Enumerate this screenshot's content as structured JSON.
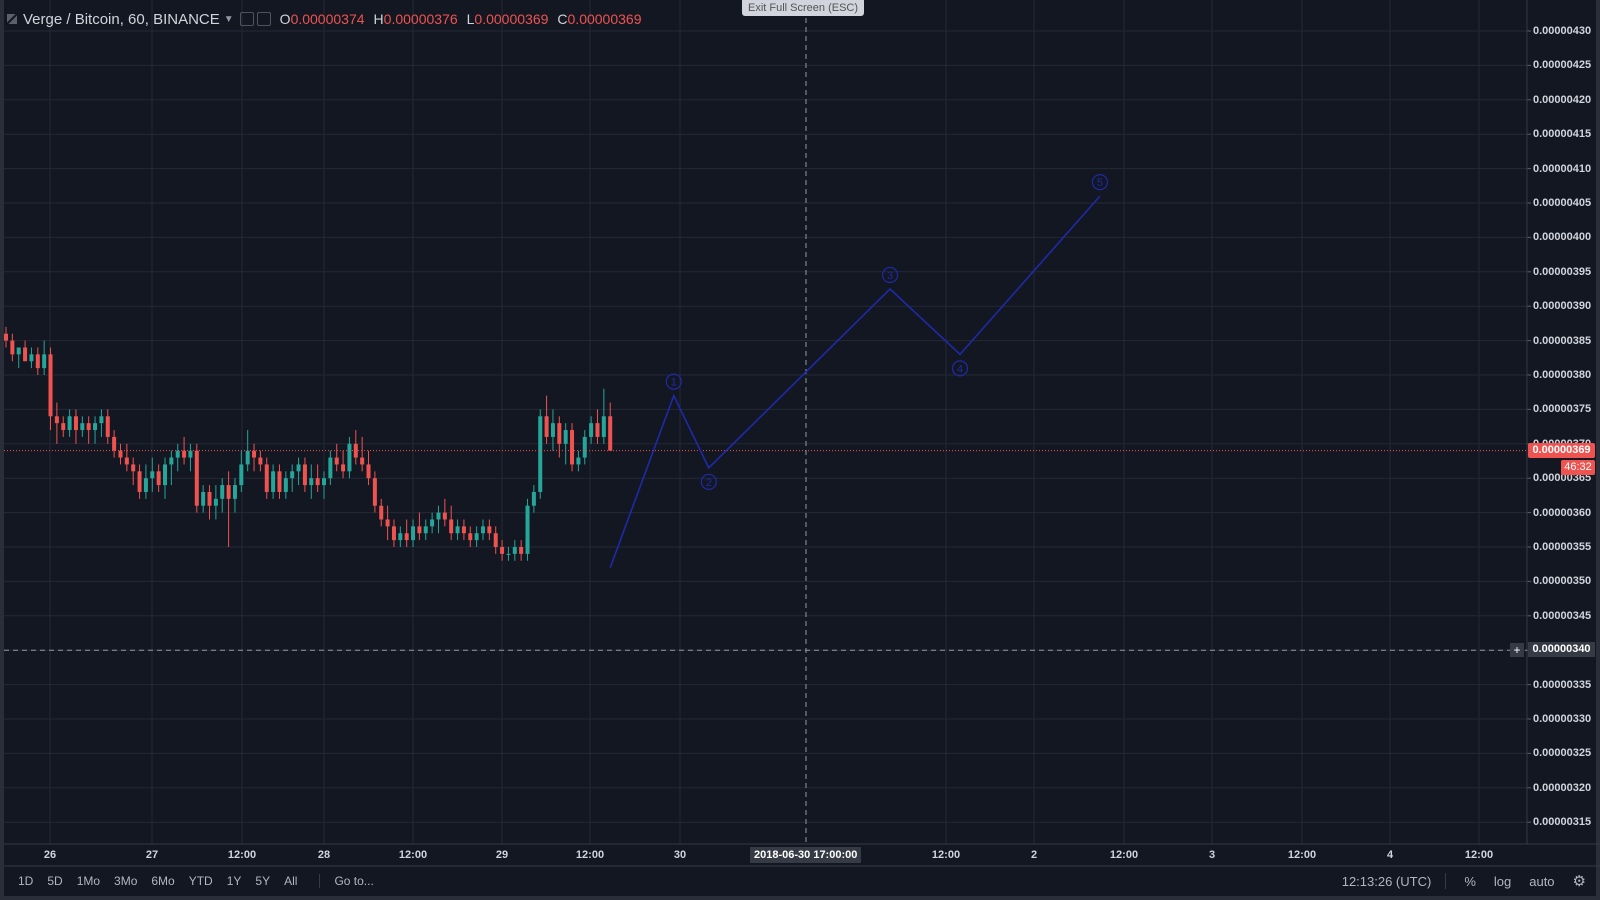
{
  "window": {
    "exit_fullscreen": "Exit Full Screen (ESC)"
  },
  "header": {
    "title": "Verge / Bitcoin, 60, BINANCE",
    "open_label": "O",
    "open": "0.00000374",
    "high_label": "H",
    "high": "0.00000376",
    "low_label": "L",
    "low": "0.00000369",
    "close_label": "C",
    "close": "0.00000369"
  },
  "price_axis": {
    "labels": [
      "0.00000430",
      "0.00000425",
      "0.00000420",
      "0.00000415",
      "0.00000410",
      "0.00000405",
      "0.00000400",
      "0.00000395",
      "0.00000390",
      "0.00000385",
      "0.00000380",
      "0.00000375",
      "0.00000370",
      "0.00000365",
      "0.00000360",
      "0.00000355",
      "0.00000350",
      "0.00000345",
      "0.00000340",
      "0.00000335",
      "0.00000330",
      "0.00000325",
      "0.00000320",
      "0.00000315"
    ],
    "current_price": "0.00000369",
    "countdown": "46:32",
    "crosshair_price": "0.00000340"
  },
  "time_axis": {
    "labels": [
      "26",
      "27",
      "12:00",
      "28",
      "12:00",
      "29",
      "12:00",
      "30",
      "12:00",
      "2",
      "12:00",
      "3",
      "12:00",
      "4",
      "12:00"
    ],
    "crosshair_time": "2018-06-30 17:00:00"
  },
  "bottom_bar": {
    "ranges": [
      "1D",
      "5D",
      "1Mo",
      "3Mo",
      "6Mo",
      "YTD",
      "1Y",
      "5Y",
      "All"
    ],
    "goto": "Go to...",
    "clock": "12:13:26 (UTC)",
    "percent": "%",
    "log": "log",
    "auto": "auto"
  },
  "elliott_wave": {
    "labels": [
      "1",
      "2",
      "3",
      "4",
      "5"
    ],
    "color": "#1e2aa8"
  },
  "colors": {
    "up": "#26a69a",
    "down": "#ef5350",
    "background": "#131722",
    "grid": "#2a2e39"
  },
  "chart_data": {
    "type": "candlestick",
    "title": "Verge / Bitcoin, 60, BINANCE",
    "ylim": [
      3.13e-06,
      4.33e-06
    ],
    "candles": [
      [
        3.86,
        3.87,
        3.84,
        3.85
      ],
      [
        3.85,
        3.86,
        3.82,
        3.83
      ],
      [
        3.83,
        3.84,
        3.81,
        3.84
      ],
      [
        3.84,
        3.85,
        3.82,
        3.82
      ],
      [
        3.82,
        3.84,
        3.81,
        3.83
      ],
      [
        3.83,
        3.84,
        3.8,
        3.81
      ],
      [
        3.81,
        3.85,
        3.8,
        3.83
      ],
      [
        3.83,
        3.84,
        3.72,
        3.74
      ],
      [
        3.74,
        3.76,
        3.7,
        3.73
      ],
      [
        3.73,
        3.74,
        3.71,
        3.72
      ],
      [
        3.72,
        3.75,
        3.71,
        3.74
      ],
      [
        3.74,
        3.75,
        3.7,
        3.72
      ],
      [
        3.72,
        3.74,
        3.71,
        3.73
      ],
      [
        3.73,
        3.74,
        3.7,
        3.72
      ],
      [
        3.72,
        3.74,
        3.7,
        3.73
      ],
      [
        3.73,
        3.75,
        3.71,
        3.74
      ],
      [
        3.74,
        3.75,
        3.7,
        3.71
      ],
      [
        3.71,
        3.72,
        3.68,
        3.69
      ],
      [
        3.69,
        3.7,
        3.67,
        3.68
      ],
      [
        3.68,
        3.7,
        3.66,
        3.67
      ],
      [
        3.67,
        3.68,
        3.64,
        3.66
      ],
      [
        3.66,
        3.67,
        3.62,
        3.63
      ],
      [
        3.63,
        3.67,
        3.62,
        3.65
      ],
      [
        3.65,
        3.68,
        3.63,
        3.66
      ],
      [
        3.66,
        3.67,
        3.63,
        3.64
      ],
      [
        3.64,
        3.68,
        3.62,
        3.67
      ],
      [
        3.67,
        3.69,
        3.64,
        3.68
      ],
      [
        3.68,
        3.7,
        3.66,
        3.69
      ],
      [
        3.69,
        3.71,
        3.67,
        3.68
      ],
      [
        3.68,
        3.7,
        3.66,
        3.69
      ],
      [
        3.69,
        3.7,
        3.6,
        3.61
      ],
      [
        3.61,
        3.64,
        3.6,
        3.63
      ],
      [
        3.63,
        3.64,
        3.59,
        3.61
      ],
      [
        3.61,
        3.64,
        3.59,
        3.62
      ],
      [
        3.62,
        3.65,
        3.6,
        3.64
      ],
      [
        3.64,
        3.66,
        3.55,
        3.62
      ],
      [
        3.62,
        3.65,
        3.6,
        3.64
      ],
      [
        3.64,
        3.69,
        3.63,
        3.67
      ],
      [
        3.67,
        3.72,
        3.66,
        3.69
      ],
      [
        3.69,
        3.7,
        3.66,
        3.68
      ],
      [
        3.68,
        3.69,
        3.66,
        3.67
      ],
      [
        3.67,
        3.68,
        3.62,
        3.63
      ],
      [
        3.63,
        3.67,
        3.62,
        3.66
      ],
      [
        3.66,
        3.67,
        3.62,
        3.63
      ],
      [
        3.63,
        3.66,
        3.62,
        3.65
      ],
      [
        3.65,
        3.67,
        3.63,
        3.66
      ],
      [
        3.66,
        3.68,
        3.64,
        3.67
      ],
      [
        3.67,
        3.68,
        3.63,
        3.64
      ],
      [
        3.64,
        3.67,
        3.62,
        3.65
      ],
      [
        3.65,
        3.67,
        3.63,
        3.64
      ],
      [
        3.64,
        3.66,
        3.62,
        3.65
      ],
      [
        3.65,
        3.69,
        3.64,
        3.68
      ],
      [
        3.68,
        3.7,
        3.66,
        3.67
      ],
      [
        3.67,
        3.69,
        3.65,
        3.66
      ],
      [
        3.66,
        3.71,
        3.65,
        3.7
      ],
      [
        3.7,
        3.72,
        3.67,
        3.68
      ],
      [
        3.68,
        3.71,
        3.66,
        3.67
      ],
      [
        3.67,
        3.69,
        3.64,
        3.65
      ],
      [
        3.65,
        3.66,
        3.6,
        3.61
      ],
      [
        3.61,
        3.62,
        3.58,
        3.59
      ],
      [
        3.59,
        3.61,
        3.56,
        3.58
      ],
      [
        3.58,
        3.59,
        3.55,
        3.56
      ],
      [
        3.56,
        3.58,
        3.55,
        3.57
      ],
      [
        3.57,
        3.59,
        3.55,
        3.56
      ],
      [
        3.56,
        3.59,
        3.55,
        3.58
      ],
      [
        3.58,
        3.6,
        3.56,
        3.57
      ],
      [
        3.57,
        3.59,
        3.56,
        3.58
      ],
      [
        3.58,
        3.6,
        3.57,
        3.59
      ],
      [
        3.59,
        3.61,
        3.57,
        3.6
      ],
      [
        3.6,
        3.62,
        3.58,
        3.59
      ],
      [
        3.59,
        3.61,
        3.56,
        3.57
      ],
      [
        3.57,
        3.59,
        3.56,
        3.58
      ],
      [
        3.58,
        3.59,
        3.56,
        3.57
      ],
      [
        3.57,
        3.58,
        3.55,
        3.56
      ],
      [
        3.56,
        3.58,
        3.55,
        3.57
      ],
      [
        3.57,
        3.59,
        3.56,
        3.58
      ],
      [
        3.58,
        3.59,
        3.56,
        3.57
      ],
      [
        3.57,
        3.58,
        3.54,
        3.55
      ],
      [
        3.55,
        3.56,
        3.53,
        3.54
      ],
      [
        3.54,
        3.55,
        3.53,
        3.54
      ],
      [
        3.54,
        3.56,
        3.53,
        3.55
      ],
      [
        3.55,
        3.56,
        3.53,
        3.54
      ],
      [
        3.54,
        3.62,
        3.53,
        3.61
      ],
      [
        3.61,
        3.64,
        3.6,
        3.63
      ],
      [
        3.63,
        3.75,
        3.62,
        3.74
      ],
      [
        3.74,
        3.77,
        3.7,
        3.71
      ],
      [
        3.71,
        3.75,
        3.69,
        3.73
      ],
      [
        3.73,
        3.74,
        3.68,
        3.7
      ],
      [
        3.7,
        3.73,
        3.67,
        3.72
      ],
      [
        3.72,
        3.73,
        3.66,
        3.67
      ],
      [
        3.67,
        3.69,
        3.66,
        3.68
      ],
      [
        3.68,
        3.72,
        3.67,
        3.71
      ],
      [
        3.71,
        3.74,
        3.7,
        3.73
      ],
      [
        3.73,
        3.75,
        3.7,
        3.71
      ],
      [
        3.71,
        3.78,
        3.7,
        3.74
      ],
      [
        3.74,
        3.76,
        3.69,
        3.69
      ]
    ]
  }
}
